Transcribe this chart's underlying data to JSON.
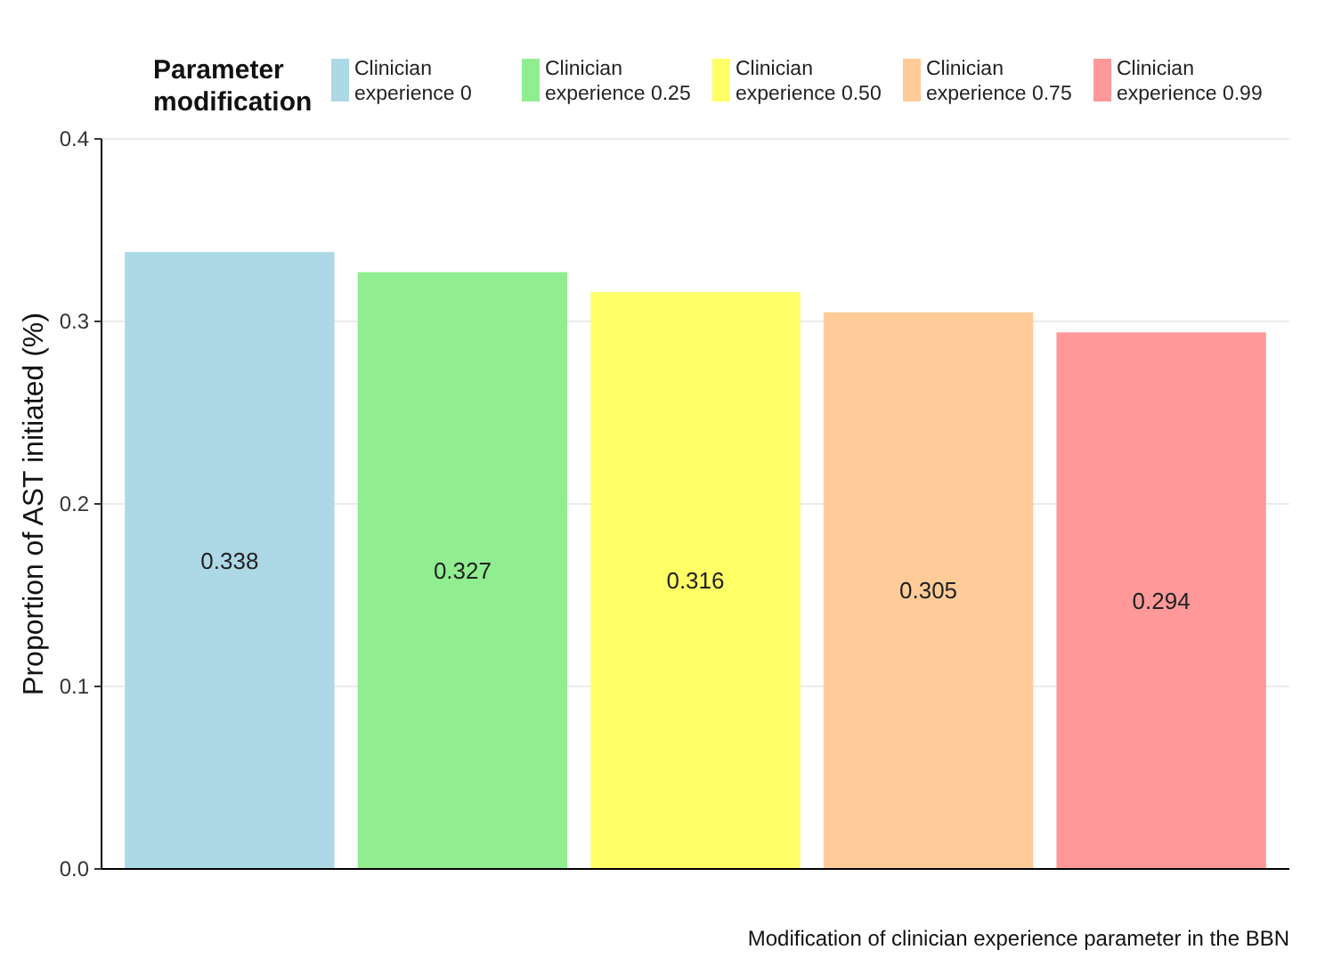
{
  "chart_data": {
    "type": "bar",
    "stacked": true,
    "xlabel": "Modification of clinician experience parameter in the BBN",
    "ylabel": "Proportion of AST  initiated (%)",
    "legend_title": "Parameter modification",
    "legend": "top",
    "grid": "y",
    "data_labels": true,
    "categories": [
      null,
      null,
      null,
      null,
      null
    ],
    "ylim": [
      0,
      0.4
    ],
    "yticks": [
      {
        "value": 0,
        "label": "0.0"
      },
      0.1,
      0.2,
      0.3,
      0.4
    ],
    "series": [
      {
        "name": "Clinician experience 0",
        "color": "#add8e6",
        "values": [
          0.338,
          null,
          null,
          null,
          null
        ]
      },
      {
        "name": "Clinician experience 0.25",
        "color": "#90ee90",
        "values": [
          null,
          0.327,
          null,
          null,
          null
        ]
      },
      {
        "name": "Clinician experience 0.50",
        "color": "#ffff66",
        "values": [
          null,
          null,
          0.316,
          null,
          null
        ]
      },
      {
        "name": "Clinician experience 0.75",
        "color": "#ffcc99",
        "values": [
          null,
          null,
          null,
          0.305,
          null
        ]
      },
      {
        "name": "Clinician experience 0.99",
        "color": "#ff9999",
        "values": [
          null,
          null,
          null,
          null,
          0.294
        ]
      }
    ]
  }
}
